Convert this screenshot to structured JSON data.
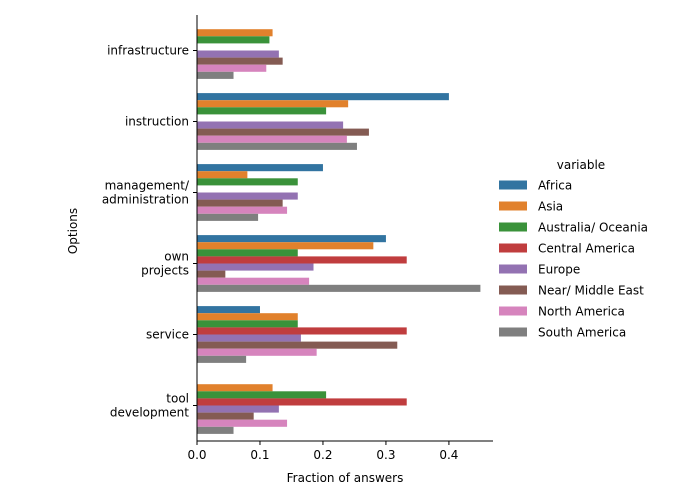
{
  "chart_data": {
    "type": "bar",
    "orientation": "horizontal",
    "xlabel": "Fraction of answers",
    "ylabel": "Options",
    "xlim": [
      0,
      0.47
    ],
    "xticks": [
      "0.0",
      "0.1",
      "0.2",
      "0.3",
      "0.4"
    ],
    "categories": [
      [
        "infrastructure"
      ],
      [
        "instruction"
      ],
      [
        "management/",
        "administration"
      ],
      [
        "own",
        "projects"
      ],
      [
        "service"
      ],
      [
        "tool",
        "development"
      ]
    ],
    "legend_title": "variable",
    "legend_position": "right",
    "series": [
      {
        "name": "Africa",
        "color": "#3274a1",
        "values": [
          0.0,
          0.4,
          0.2,
          0.3,
          0.1,
          0.0
        ]
      },
      {
        "name": "Asia",
        "color": "#e1812c",
        "values": [
          0.12,
          0.24,
          0.08,
          0.28,
          0.16,
          0.12
        ]
      },
      {
        "name": "Australia/ Oceania",
        "color": "#3a923a",
        "values": [
          0.115,
          0.205,
          0.16,
          0.16,
          0.16,
          0.205
        ]
      },
      {
        "name": "Central America",
        "color": "#c03d3e",
        "values": [
          0.0,
          0.0,
          0.0,
          0.333,
          0.333,
          0.333
        ]
      },
      {
        "name": "Europe",
        "color": "#9372b2",
        "values": [
          0.13,
          0.232,
          0.16,
          0.185,
          0.165,
          0.13
        ]
      },
      {
        "name": "Near/ Middle East",
        "color": "#845b53",
        "values": [
          0.136,
          0.273,
          0.136,
          0.045,
          0.318,
          0.09
        ]
      },
      {
        "name": "North America",
        "color": "#d684bd",
        "values": [
          0.11,
          0.238,
          0.143,
          0.178,
          0.19,
          0.143
        ]
      },
      {
        "name": "South America",
        "color": "#7f7f7f",
        "values": [
          0.058,
          0.254,
          0.097,
          0.45,
          0.078,
          0.058
        ]
      }
    ]
  }
}
